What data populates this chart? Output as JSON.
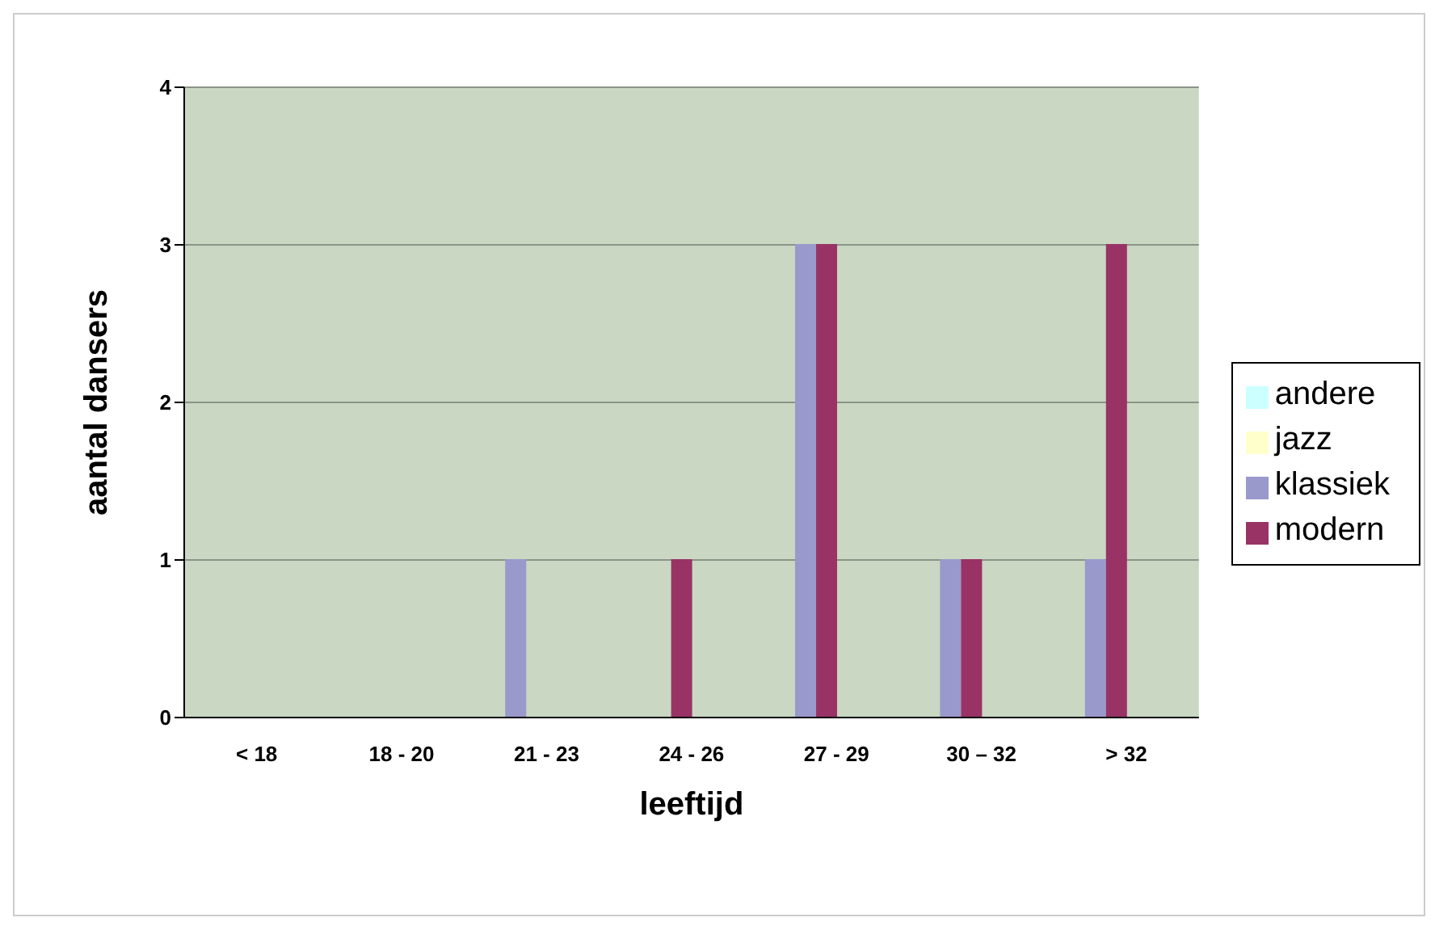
{
  "chart_data": {
    "type": "bar",
    "xlabel": "leeftijd",
    "ylabel": "aantal dansers",
    "categories": [
      "< 18",
      "18 - 20",
      "21 - 23",
      "24 - 26",
      "27 - 29",
      "30 – 32",
      "> 32"
    ],
    "series": [
      {
        "name": "klassiek",
        "color": "#9999cc",
        "values": [
          0,
          0,
          1,
          0,
          3,
          1,
          1
        ]
      },
      {
        "name": "modern",
        "color": "#993366",
        "values": [
          0,
          0,
          0,
          1,
          3,
          1,
          3
        ]
      },
      {
        "name": "jazz",
        "color": "#ffffcc",
        "values": [
          0,
          0,
          0,
          0,
          0,
          0,
          0
        ]
      },
      {
        "name": "andere",
        "color": "#ccffff",
        "values": [
          0,
          0,
          0,
          0,
          0,
          0,
          0
        ]
      }
    ],
    "ylim": [
      0,
      4
    ],
    "yticks": [
      0,
      1,
      2,
      3,
      4
    ],
    "grid": "y",
    "legend": "right"
  }
}
